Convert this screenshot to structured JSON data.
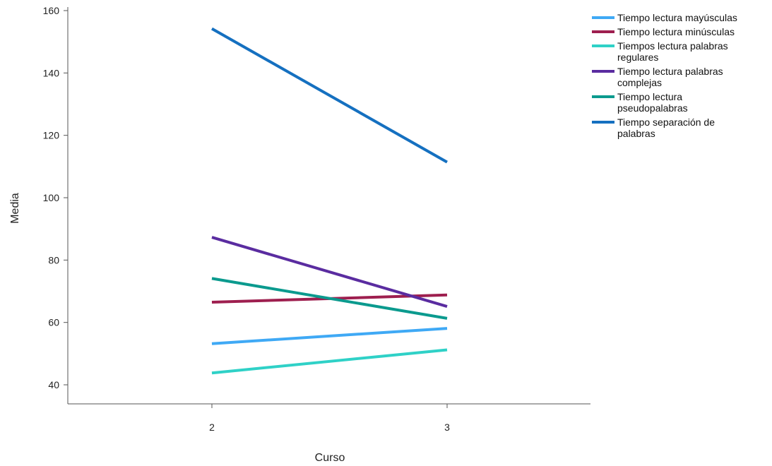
{
  "chart_data": {
    "type": "line",
    "title": "",
    "xlabel": "Curso",
    "ylabel": "Media",
    "categories": [
      "2",
      "3"
    ],
    "ylim": [
      35,
      165
    ],
    "yticks": [
      "40",
      "60",
      "80",
      "100",
      "120",
      "140",
      "160"
    ],
    "grid": false,
    "legend_position": "top-right",
    "series": [
      {
        "name": "Tiempo lectura mayúsculas",
        "label_lines": [
          "Tiempo lectura mayúsculas"
        ],
        "color": "#3fa9f5",
        "values": [
          53.2,
          58.1
        ]
      },
      {
        "name": "Tiempo lectura minúsculas",
        "label_lines": [
          "Tiempo lectura minúsculas"
        ],
        "color": "#9e1f4f",
        "values": [
          66.5,
          68.8
        ]
      },
      {
        "name": "Tiempos lectura palabras regulares",
        "label_lines": [
          "Tiempos lectura palabras",
          "regulares"
        ],
        "color": "#2fd1c7",
        "values": [
          43.8,
          51.2
        ]
      },
      {
        "name": "Tiempo lectura palabras complejas",
        "label_lines": [
          "Tiempo lectura palabras",
          "complejas"
        ],
        "color": "#5a2ca0",
        "values": [
          87.3,
          65.1
        ]
      },
      {
        "name": "Tiempo lectura pseudopalabras",
        "label_lines": [
          "Tiempo lectura",
          "pseudopalabras"
        ],
        "color": "#0b9a8e",
        "values": [
          74.1,
          61.3
        ]
      },
      {
        "name": "Tiempo separación de palabras",
        "label_lines": [
          "Tiempo separación de",
          "palabras"
        ],
        "color": "#1570c0",
        "values": [
          154.2,
          111.4
        ]
      }
    ]
  }
}
